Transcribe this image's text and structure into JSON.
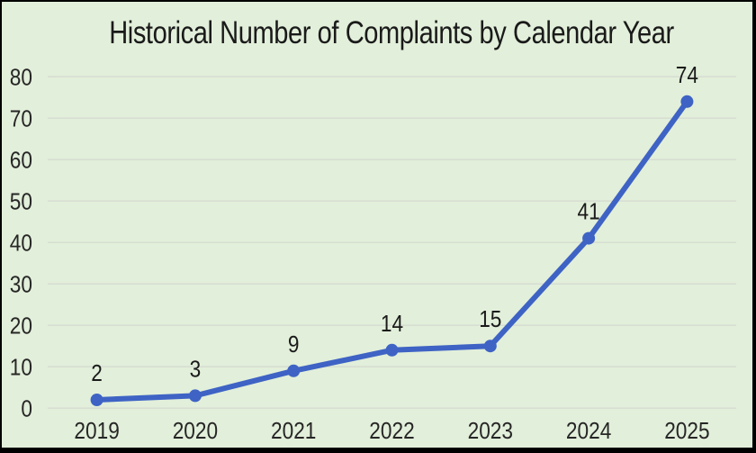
{
  "chart_data": {
    "type": "line",
    "title": "Historical Number of Complaints by Calendar Year",
    "categories": [
      "2019",
      "2020",
      "2021",
      "2022",
      "2023",
      "2024",
      "2025"
    ],
    "values": [
      2,
      3,
      9,
      14,
      15,
      41,
      74
    ],
    "data_labels": [
      "2",
      "3",
      "9",
      "14",
      "15",
      "41",
      "74"
    ],
    "y_ticks": [
      0,
      10,
      20,
      30,
      40,
      50,
      60,
      70,
      80
    ],
    "ylim": [
      0,
      80
    ],
    "xlabel": "",
    "ylabel": "",
    "grid": true,
    "legend": "none",
    "marker": "circle",
    "colors": {
      "line": "#3E63C5",
      "marker": "#3E63C5",
      "background": "#E2EFDA",
      "frame": "#000000",
      "gridline": "#D5DBD1",
      "title_text": "#1A1A1A",
      "tick_text": "#262626",
      "label_text": "#1A1A1A"
    }
  }
}
